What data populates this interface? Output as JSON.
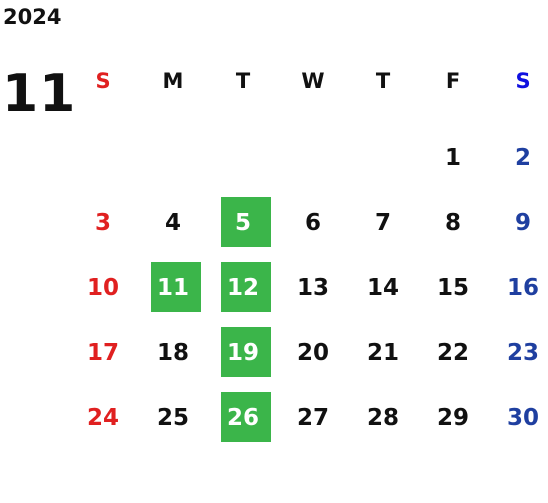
{
  "year": "2024",
  "month": "11",
  "weekday_headers": [
    "S",
    "M",
    "T",
    "W",
    "T",
    "F",
    "S"
  ],
  "weeks": [
    [
      "",
      "",
      "",
      "",
      "",
      "1",
      "2"
    ],
    [
      "3",
      "4",
      "5",
      "6",
      "7",
      "8",
      "9"
    ],
    [
      "10",
      "11",
      "12",
      "13",
      "14",
      "15",
      "16"
    ],
    [
      "17",
      "18",
      "19",
      "20",
      "21",
      "22",
      "23"
    ],
    [
      "24",
      "25",
      "26",
      "27",
      "28",
      "29",
      "30"
    ]
  ],
  "highlighted_days": [
    "5",
    "11",
    "12",
    "19",
    "26"
  ],
  "colors": {
    "sunday": "#e02020",
    "saturday": "#1f3fa0",
    "saturday_header": "#1010e0",
    "highlight": "#3bb54a",
    "text": "#111111"
  }
}
